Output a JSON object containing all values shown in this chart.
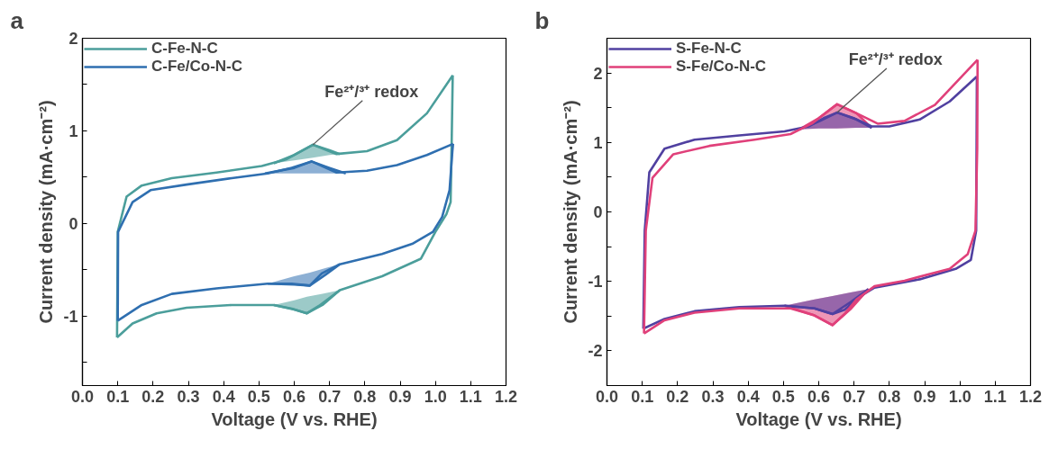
{
  "chart_data": [
    {
      "type": "line",
      "title": "a",
      "xlabel": "Voltage (V vs. RHE)",
      "ylabel": "Current density (mA·cm⁻²)",
      "xlim": [
        0,
        1.2
      ],
      "ylim": [
        -1.75,
        2.0
      ],
      "xticks": [
        "0.0",
        0.1,
        "0.2",
        0.3,
        "0.4",
        0.5,
        "0.6",
        0.7,
        "0.8",
        0.9,
        "1.0",
        1.1,
        "1.2"
      ],
      "yticks": [
        {
          "value": -1.5,
          "label": null
        },
        -1,
        {
          "value": -0.5,
          "label": null
        },
        0,
        {
          "value": 0.5,
          "label": null
        },
        1,
        {
          "value": 1.5,
          "label": null
        },
        2
      ],
      "grid": false,
      "legend": "top left",
      "annotations": [
        {
          "text": "Fe²⁺/³⁺ redox",
          "x": 0.653,
          "y": 0.85
        }
      ],
      "series": [
        {
          "type": "line",
          "color": "#4b9e9b",
          "x": [
            0.542,
            0.6,
            0.653,
            0.7,
            0.729
          ],
          "values": [
            0.65,
            0.74,
            0.85,
            0.79,
            0.75
          ],
          "upper": [
            0.65,
            0.74,
            0.85,
            0.79,
            0.75
          ],
          "lower": [
            0.65,
            0.68,
            0.71,
            0.74,
            0.75
          ]
        },
        {
          "type": "line",
          "color": "#4b9e9b",
          "x": [
            0.542,
            0.6,
            0.636,
            0.68,
            0.729
          ],
          "values": [
            -0.88,
            -0.93,
            -0.97,
            -0.88,
            -0.72
          ],
          "upper": [
            -0.88,
            -0.83,
            -0.79,
            -0.76,
            -0.72
          ],
          "lower": [
            -0.88,
            -0.93,
            -0.97,
            -0.88,
            -0.72
          ]
        },
        {
          "type": "line",
          "color": "#2f6fb0",
          "x": [
            0.517,
            0.6,
            0.649,
            0.7,
            0.746
          ],
          "values": [
            0.54,
            0.6,
            0.67,
            0.6,
            0.54
          ],
          "upper": [
            0.54,
            0.6,
            0.67,
            0.6,
            0.54
          ],
          "lower": [
            0.54,
            0.54,
            0.54,
            0.54,
            0.54
          ]
        },
        {
          "type": "line",
          "color": "#2f6fb0",
          "x": [
            0.525,
            0.6,
            0.644,
            0.69,
            0.729
          ],
          "values": [
            -0.65,
            -0.66,
            -0.67,
            -0.55,
            -0.44
          ],
          "upper": [
            -0.65,
            -0.57,
            -0.53,
            -0.48,
            -0.44
          ],
          "lower": [
            -0.65,
            -0.66,
            -0.67,
            -0.55,
            -0.44
          ]
        },
        {
          "name": "C-Fe-N-C",
          "color": "#4b9e9b",
          "x": [
            0.098,
            0.1,
            0.125,
            0.168,
            0.253,
            0.38,
            0.508,
            0.576,
            0.653,
            0.72,
            0.806,
            0.891,
            0.976,
            1.049
          ],
          "values": [
            -1.23,
            -0.09,
            0.29,
            0.41,
            0.49,
            0.55,
            0.62,
            0.69,
            0.85,
            0.75,
            0.78,
            0.9,
            1.19,
            1.6
          ]
        },
        {
          "color": "#4b9e9b",
          "x": [
            1.049,
            1.046,
            1.043,
            1.031,
            1.0,
            0.959,
            0.849,
            0.729,
            0.67,
            0.636,
            0.593,
            0.542,
            0.423,
            0.295,
            0.21,
            0.142,
            0.098
          ],
          "values": [
            1.6,
            0.87,
            0.23,
            0.1,
            -0.09,
            -0.38,
            -0.57,
            -0.72,
            -0.89,
            -0.97,
            -0.92,
            -0.88,
            -0.88,
            -0.91,
            -0.97,
            -1.08,
            -1.23
          ]
        },
        {
          "name": "C-Fe/Co-N-C",
          "color": "#2f6fb0",
          "x": [
            0.1,
            0.101,
            0.142,
            0.193,
            0.295,
            0.423,
            0.525,
            0.593,
            0.649,
            0.72,
            0.806,
            0.891,
            0.976,
            1.05
          ],
          "values": [
            -1.05,
            -0.09,
            0.23,
            0.36,
            0.42,
            0.49,
            0.54,
            0.6,
            0.67,
            0.55,
            0.57,
            0.63,
            0.74,
            0.86
          ]
        },
        {
          "color": "#2f6fb0",
          "x": [
            1.05,
            1.048,
            1.04,
            1.019,
            0.993,
            0.934,
            0.849,
            0.729,
            0.678,
            0.644,
            0.593,
            0.525,
            0.38,
            0.253,
            0.168,
            0.1
          ],
          "values": [
            0.86,
            0.78,
            0.36,
            0.07,
            -0.09,
            -0.22,
            -0.33,
            -0.44,
            -0.54,
            -0.67,
            -0.65,
            -0.65,
            -0.7,
            -0.76,
            -0.88,
            -1.05
          ]
        }
      ]
    },
    {
      "type": "line",
      "title": "b",
      "xlabel": "Voltage (V vs. RHE)",
      "ylabel": "Current density (mA·cm⁻²)",
      "xlim": [
        0,
        1.2
      ],
      "ylim": [
        -2.5,
        2.5
      ],
      "xticks": [
        "0.0",
        0.1,
        "0.2",
        0.3,
        "0.4",
        0.5,
        "0.6",
        0.7,
        "0.8",
        0.9,
        "1.0",
        1.1,
        "1.2"
      ],
      "yticks": [
        -2,
        {
          "value": -1.5,
          "label": null
        },
        -1,
        {
          "value": -0.5,
          "label": null
        },
        0,
        {
          "value": 0.5,
          "label": null
        },
        1,
        {
          "value": 1.5,
          "label": null
        },
        2
      ],
      "grid": false,
      "legend": "top left",
      "annotations": [
        {
          "text": "Fe²⁺/³⁺ redox",
          "x": 0.652,
          "y": 1.43
        }
      ],
      "series": [
        {
          "type": "line",
          "color": "#e0407a",
          "x": [
            0.546,
            0.6,
            0.652,
            0.707,
            0.75
          ],
          "values": [
            1.19,
            1.35,
            1.55,
            1.42,
            1.21
          ],
          "upper": [
            1.19,
            1.35,
            1.55,
            1.42,
            1.21
          ],
          "lower": [
            1.19,
            1.2,
            1.2,
            1.21,
            1.21
          ]
        },
        {
          "type": "line",
          "color": "#e0407a",
          "x": [
            0.503,
            0.588,
            0.639,
            0.69,
            0.741
          ],
          "values": [
            -1.35,
            -1.49,
            -1.63,
            -1.4,
            -1.11
          ],
          "upper": [
            -1.35,
            -1.26,
            -1.21,
            -1.16,
            -1.11
          ],
          "lower": [
            -1.35,
            -1.49,
            -1.63,
            -1.4,
            -1.11
          ]
        },
        {
          "type": "line",
          "color": "#5040a0",
          "x": [
            0.546,
            0.6,
            0.652,
            0.707,
            0.75
          ],
          "values": [
            1.19,
            1.3,
            1.43,
            1.33,
            1.21
          ],
          "upper": [
            1.19,
            1.3,
            1.43,
            1.33,
            1.21
          ],
          "lower": [
            1.19,
            1.2,
            1.2,
            1.21,
            1.21
          ]
        },
        {
          "type": "line",
          "color": "#5040a0",
          "x": [
            0.503,
            0.588,
            0.639,
            0.69,
            0.741
          ],
          "values": [
            -1.35,
            -1.39,
            -1.47,
            -1.3,
            -1.11
          ],
          "upper": [
            -1.35,
            -1.26,
            -1.21,
            -1.16,
            -1.11
          ],
          "lower": [
            -1.35,
            -1.39,
            -1.47,
            -1.3,
            -1.11
          ]
        },
        {
          "name": "S-Fe-N-C",
          "color": "#5040a0",
          "x": [
            0.103,
            0.107,
            0.12,
            0.163,
            0.248,
            0.375,
            0.503,
            0.571,
            0.614,
            0.652,
            0.699,
            0.75,
            0.8,
            0.886,
            0.971,
            1.048
          ],
          "values": [
            -1.68,
            -0.27,
            0.57,
            0.91,
            1.04,
            1.1,
            1.16,
            1.23,
            1.35,
            1.43,
            1.35,
            1.23,
            1.23,
            1.33,
            1.59,
            1.95
          ]
        },
        {
          "color": "#5040a0",
          "x": [
            1.048,
            1.047,
            1.046,
            1.031,
            0.988,
            0.886,
            0.758,
            0.716,
            0.673,
            0.639,
            0.588,
            0.503,
            0.375,
            0.248,
            0.163,
            0.103
          ],
          "values": [
            1.95,
            0.78,
            -0.27,
            -0.69,
            -0.82,
            -0.97,
            -1.09,
            -1.22,
            -1.41,
            -1.47,
            -1.39,
            -1.35,
            -1.37,
            -1.43,
            -1.54,
            -1.68
          ]
        },
        {
          "name": "S-Fe/Co-N-C",
          "color": "#e0407a",
          "x": [
            0.105,
            0.11,
            0.129,
            0.188,
            0.29,
            0.418,
            0.52,
            0.58,
            0.652,
            0.707,
            0.767,
            0.843,
            0.929,
            1.05
          ],
          "values": [
            -1.75,
            -0.27,
            0.49,
            0.83,
            0.95,
            1.04,
            1.12,
            1.27,
            1.55,
            1.42,
            1.27,
            1.31,
            1.54,
            2.19
          ]
        },
        {
          "color": "#e0407a",
          "x": [
            1.05,
            1.049,
            1.044,
            1.022,
            0.971,
            0.843,
            0.758,
            0.707,
            0.673,
            0.639,
            0.588,
            0.52,
            0.375,
            0.248,
            0.163,
            0.105
          ],
          "values": [
            2.19,
            0.91,
            -0.27,
            -0.61,
            -0.82,
            -0.99,
            -1.07,
            -1.26,
            -1.47,
            -1.63,
            -1.49,
            -1.39,
            -1.39,
            -1.45,
            -1.56,
            -1.75
          ]
        }
      ]
    }
  ]
}
